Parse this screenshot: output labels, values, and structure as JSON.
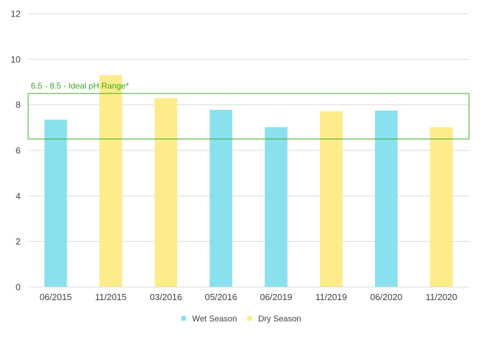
{
  "chart_data": {
    "type": "bar",
    "categories": [
      "06/2015",
      "11/2015",
      "03/2016",
      "05/2016",
      "06/2019",
      "11/2019",
      "06/2020",
      "11/2020"
    ],
    "values": [
      7.35,
      9.3,
      8.3,
      7.78,
      7.02,
      7.72,
      7.75,
      7.02
    ],
    "season": [
      "Wet Season",
      "Dry Season",
      "Dry Season",
      "Wet Season",
      "Wet Season",
      "Dry Season",
      "Wet Season",
      "Dry Season"
    ],
    "series": [
      {
        "name": "Wet Season",
        "color": "#8ae0ee"
      },
      {
        "name": "Dry Season",
        "color": "#fdec8a"
      }
    ],
    "ylim": [
      0,
      12
    ],
    "yticks": [
      0,
      2,
      4,
      6,
      8,
      10,
      12
    ],
    "grid": true,
    "legend": "bottom",
    "annotation": {
      "text": "6.5 - 8.5 - Ideal pH Range*",
      "range": [
        6.5,
        8.5
      ],
      "color": "#3aaa1f"
    }
  }
}
